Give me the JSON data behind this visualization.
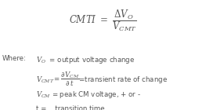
{
  "bg_color": "#ffffff",
  "font_color": "#555555",
  "title_fontsize": 8.5,
  "body_fontsize": 6.2,
  "fig_width": 2.63,
  "fig_height": 1.4,
  "dpi": 100
}
